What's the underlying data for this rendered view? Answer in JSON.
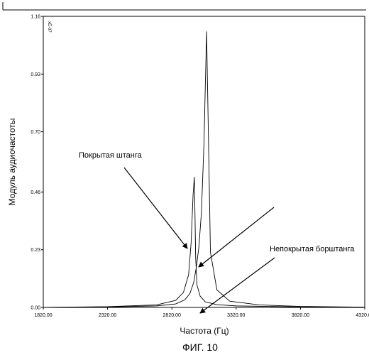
{
  "chart_data": {
    "type": "line",
    "xlabel": "Частота (Гц)",
    "ylabel": "Модуль аудиочастоты",
    "y_multiplier": "xE-07",
    "xlim": [
      1820,
      4320
    ],
    "ylim": [
      0,
      1.16
    ],
    "x_ticks": [
      "1820.00",
      "2320.00",
      "2820.00",
      "3320.00",
      "3820.00",
      "4320.00"
    ],
    "y_ticks": [
      "0.00",
      "0.23",
      "0.46",
      "0.70",
      "0.93",
      "1.16"
    ],
    "grid": false,
    "series": [
      {
        "x": [
          1820,
          2320,
          2700,
          2850,
          2920,
          2960,
          2990,
          3010,
          3030,
          3050,
          3070,
          3090,
          3120,
          3170,
          3270,
          3500,
          3820,
          4320
        ],
        "y": [
          0.0,
          0.002,
          0.006,
          0.014,
          0.03,
          0.055,
          0.1,
          0.16,
          0.24,
          0.38,
          0.66,
          1.1,
          0.22,
          0.07,
          0.025,
          0.01,
          0.004,
          0.001
        ]
      },
      {
        "x": [
          1820,
          2320,
          2700,
          2850,
          2910,
          2950,
          2970,
          2985,
          2995,
          3005,
          3015,
          3040,
          3080,
          3170,
          3320,
          3820,
          4320
        ],
        "y": [
          0.0,
          0.003,
          0.01,
          0.028,
          0.06,
          0.13,
          0.26,
          0.45,
          0.52,
          0.2,
          0.09,
          0.045,
          0.022,
          0.011,
          0.006,
          0.002,
          0.001
        ]
      }
    ],
    "annotations": [
      {
        "id": "coated",
        "text": "Покрытая штанга"
      },
      {
        "id": "uncoated",
        "text": "Непокрытая борштанга"
      }
    ]
  },
  "caption": "ФИГ. 10"
}
